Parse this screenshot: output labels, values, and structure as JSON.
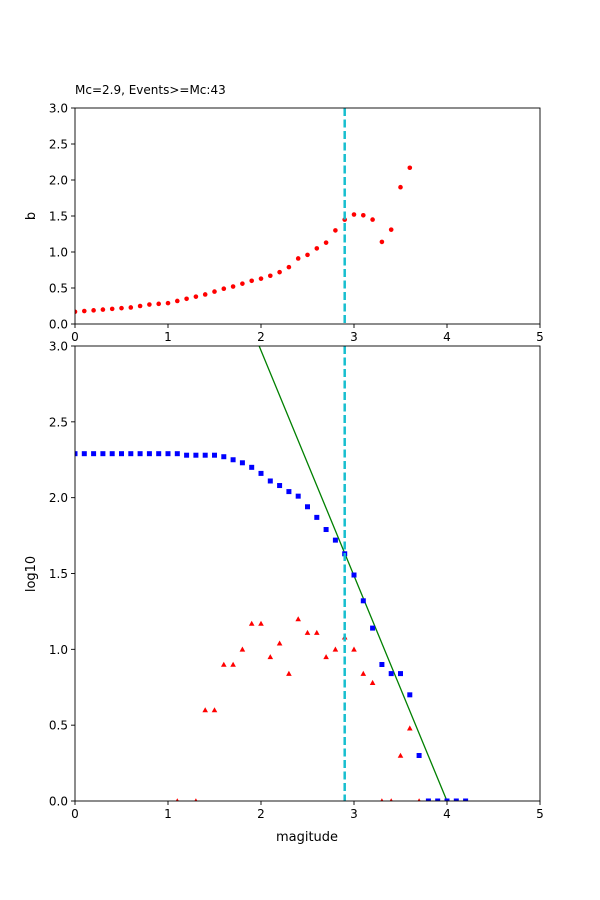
{
  "chart_data": [
    {
      "type": "scatter",
      "title": "Mc=2.9, Events>=Mc:43",
      "xlabel": "",
      "ylabel": "b",
      "xlim": [
        0,
        5
      ],
      "ylim": [
        0,
        3
      ],
      "xticks": [
        "0",
        "1",
        "2",
        "3",
        "4",
        "5"
      ],
      "yticks": [
        "0.0",
        "0.5",
        "1.0",
        "1.5",
        "2.0",
        "2.5",
        "3.0"
      ],
      "grid": false,
      "mc_line": {
        "x": 2.9,
        "color": "#17becf",
        "style": "dashed"
      },
      "series": [
        {
          "marker": "circle",
          "color": "#ff0000",
          "x": [
            0.0,
            0.1,
            0.2,
            0.3,
            0.4,
            0.5,
            0.6,
            0.7,
            0.8,
            0.9,
            1.0,
            1.1,
            1.2,
            1.3,
            1.4,
            1.5,
            1.6,
            1.7,
            1.8,
            1.9,
            2.0,
            2.1,
            2.2,
            2.3,
            2.4,
            2.5,
            2.6,
            2.7,
            2.8,
            2.9,
            3.0,
            3.1,
            3.2,
            3.3,
            3.4,
            3.5,
            3.6
          ],
          "y": [
            0.17,
            0.18,
            0.19,
            0.2,
            0.21,
            0.22,
            0.23,
            0.25,
            0.27,
            0.28,
            0.29,
            0.32,
            0.35,
            0.38,
            0.41,
            0.45,
            0.49,
            0.52,
            0.56,
            0.6,
            0.63,
            0.67,
            0.72,
            0.79,
            0.91,
            0.96,
            1.05,
            1.13,
            1.3,
            1.45,
            1.52,
            1.51,
            1.45,
            1.14,
            1.31,
            1.9,
            2.17
          ]
        }
      ]
    },
    {
      "type": "scatter",
      "title": "",
      "xlabel": "magitude",
      "ylabel": "log10",
      "xlim": [
        0,
        5
      ],
      "ylim": [
        0,
        3
      ],
      "xticks": [
        "0",
        "1",
        "2",
        "3",
        "4",
        "5"
      ],
      "yticks": [
        "0.0",
        "0.5",
        "1.0",
        "1.5",
        "2.0",
        "2.5",
        "3.0"
      ],
      "grid": false,
      "mc_line": {
        "x": 2.9,
        "color": "#17becf",
        "style": "dashed"
      },
      "fit_line": {
        "x": [
          1.98,
          4.0
        ],
        "y": [
          3.0,
          0.0
        ],
        "color": "#008000"
      },
      "series": [
        {
          "marker": "square",
          "color": "#0000ff",
          "x": [
            0.0,
            0.1,
            0.2,
            0.3,
            0.4,
            0.5,
            0.6,
            0.7,
            0.8,
            0.9,
            1.0,
            1.1,
            1.2,
            1.3,
            1.4,
            1.5,
            1.6,
            1.7,
            1.8,
            1.9,
            2.0,
            2.1,
            2.2,
            2.3,
            2.4,
            2.5,
            2.6,
            2.7,
            2.8,
            2.9,
            3.0,
            3.1,
            3.2,
            3.3,
            3.4,
            3.5,
            3.6,
            3.7,
            3.8,
            3.9,
            4.0,
            4.1,
            4.2
          ],
          "y": [
            2.29,
            2.29,
            2.29,
            2.29,
            2.29,
            2.29,
            2.29,
            2.29,
            2.29,
            2.29,
            2.29,
            2.29,
            2.28,
            2.28,
            2.28,
            2.28,
            2.27,
            2.25,
            2.23,
            2.2,
            2.16,
            2.11,
            2.08,
            2.04,
            2.01,
            1.94,
            1.87,
            1.79,
            1.72,
            1.63,
            1.49,
            1.32,
            1.14,
            0.9,
            0.84,
            0.84,
            0.7,
            0.3,
            0.0,
            0.0,
            0.0,
            0.0,
            0.0
          ]
        },
        {
          "marker": "triangle",
          "color": "#ff0000",
          "x": [
            1.1,
            1.3,
            1.4,
            1.5,
            1.6,
            1.7,
            1.8,
            1.9,
            2.0,
            2.1,
            2.2,
            2.3,
            2.4,
            2.5,
            2.6,
            2.7,
            2.8,
            2.9,
            3.0,
            3.1,
            3.2,
            3.3,
            3.4,
            3.5,
            3.6,
            3.7
          ],
          "y": [
            0.0,
            0.0,
            0.6,
            0.6,
            0.9,
            0.9,
            1.0,
            1.17,
            1.17,
            0.95,
            1.04,
            0.84,
            1.2,
            1.11,
            1.11,
            0.95,
            1.0,
            1.08,
            1.0,
            0.84,
            0.78,
            0.0,
            0.0,
            0.3,
            0.48,
            0.0
          ]
        }
      ]
    }
  ]
}
